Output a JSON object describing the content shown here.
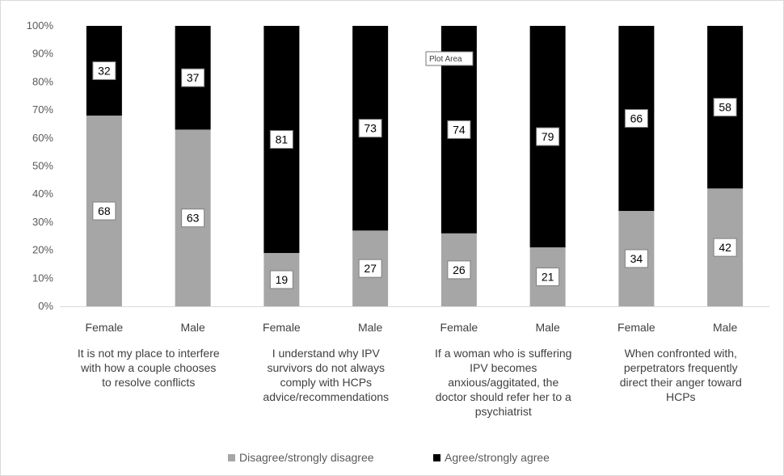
{
  "tooltip": "Plot Area",
  "chart_data": {
    "type": "bar",
    "stacked": "percent",
    "ylim": [
      0,
      100
    ],
    "yticks": [
      "0%",
      "10%",
      "20%",
      "30%",
      "40%",
      "50%",
      "60%",
      "70%",
      "80%",
      "90%",
      "100%"
    ],
    "grid": false,
    "legend_position": "bottom",
    "categories": [
      "Female",
      "Male",
      "Female",
      "Male",
      "Female",
      "Male",
      "Female",
      "Male"
    ],
    "groups": [
      {
        "label": [
          "It is not my place to interfere",
          "with how a couple chooses",
          "to resolve conflicts"
        ]
      },
      {
        "label": [
          "I understand why IPV",
          "survivors do not always",
          "comply with HCPs",
          "advice/recommendations"
        ]
      },
      {
        "label": [
          "If a woman who is suffering",
          "IPV becomes",
          "anxious/aggitated, the",
          "doctor should refer her to a",
          "psychiatrist"
        ]
      },
      {
        "label": [
          "When confronted with,",
          "perpetrators frequently",
          "direct their anger toward",
          "HCPs"
        ]
      }
    ],
    "series": [
      {
        "name": "Disagree/strongly disagree",
        "color": "#a6a6a6",
        "values": [
          68,
          63,
          19,
          27,
          26,
          21,
          34,
          42
        ]
      },
      {
        "name": "Agree/strongly agree",
        "color": "#000000",
        "values": [
          32,
          37,
          81,
          73,
          74,
          79,
          66,
          58
        ]
      }
    ]
  }
}
